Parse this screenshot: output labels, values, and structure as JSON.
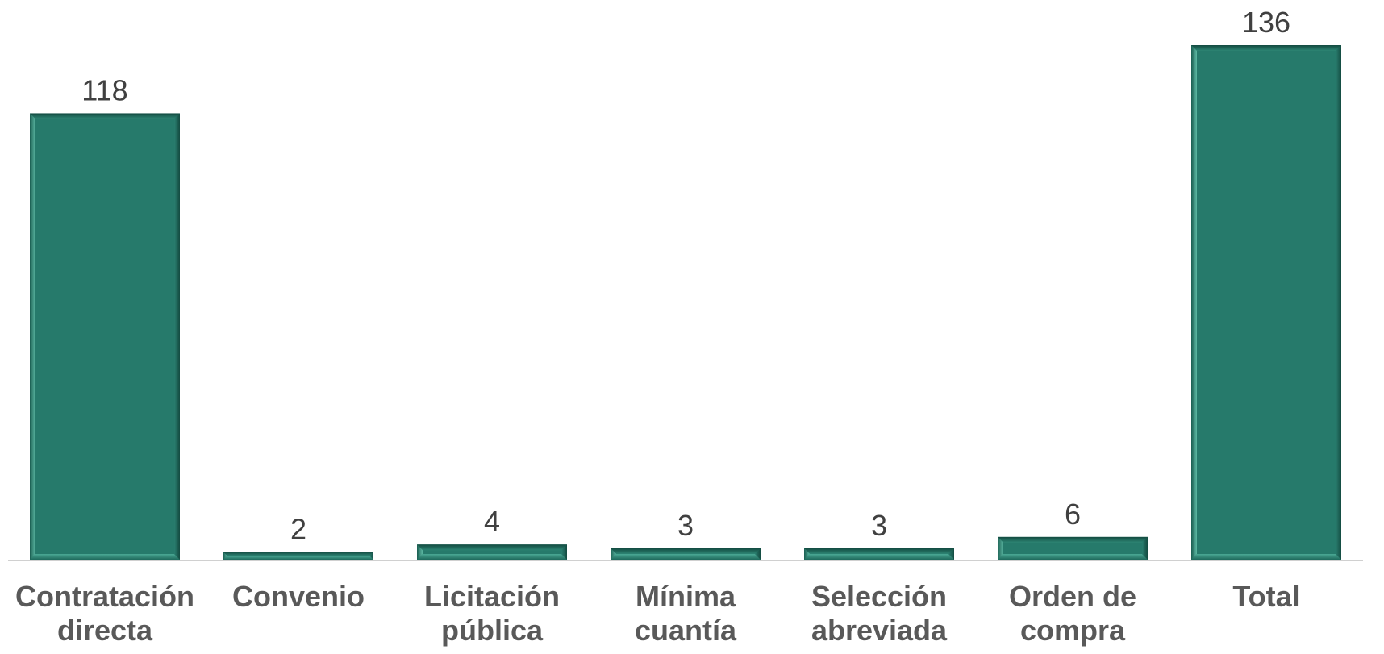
{
  "chart_data": {
    "type": "bar",
    "categories": [
      [
        "Contratación",
        "directa"
      ],
      [
        "Convenio"
      ],
      [
        "Licitación",
        "pública"
      ],
      [
        "Mínima",
        "cuantía"
      ],
      [
        "Selección",
        "abreviada"
      ],
      [
        "Orden de",
        "compra"
      ],
      [
        "Total"
      ]
    ],
    "values": [
      118,
      2,
      4,
      3,
      3,
      6,
      136
    ],
    "value_labels": [
      "118",
      "2",
      "4",
      "3",
      "3",
      "6",
      "136"
    ],
    "title": "",
    "xlabel": "",
    "ylabel": "",
    "ylim": [
      0,
      136
    ],
    "grid": false,
    "legend": "none",
    "colors": {
      "bar": "#267a6b",
      "bar_light": "#4aa894",
      "bar_dark": "#165447",
      "axis": "#d0d0d0",
      "value_text": "#404040",
      "category_text": "#595959"
    }
  }
}
